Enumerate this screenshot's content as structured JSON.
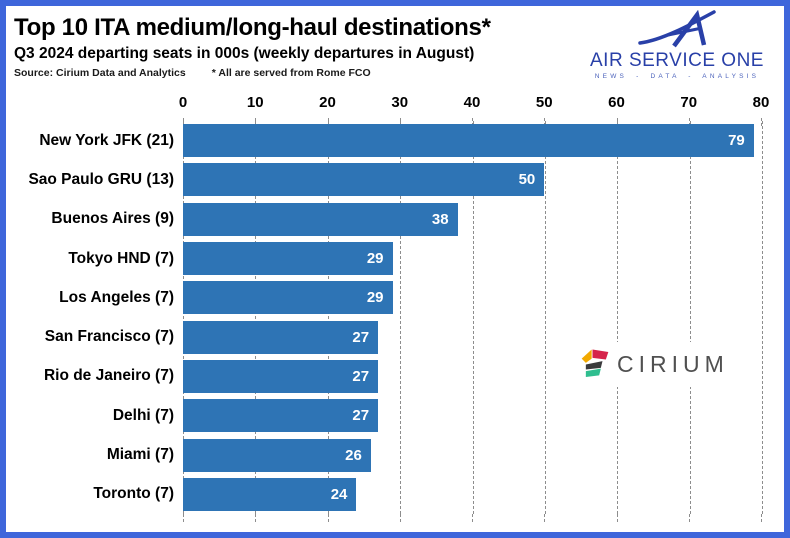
{
  "header": {
    "title": "Top 10 ITA medium/long-haul destinations*",
    "subtitle": "Q3 2024 departing seats in 000s (weekly departures in August)",
    "source": "Source: Cirium Data and Analytics",
    "footnote": "* All are served from Rome FCO"
  },
  "brand": {
    "name": "AIR SERVICE ONE",
    "tagline": "NEWS - DATA - ANALYSIS",
    "color": "#2940A8"
  },
  "watermark": {
    "text": "CIRIUM",
    "text_color": "#505050",
    "icon_colors": {
      "yellow": "#F2A900",
      "red": "#D6244B",
      "dark": "#3A3A3C",
      "green": "#2FBE8F"
    }
  },
  "frame": {
    "border_color": "#3E66DB"
  },
  "chart_data": {
    "type": "bar",
    "orientation": "horizontal",
    "title": "Top 10 ITA medium/long-haul destinations*",
    "subtitle": "Q3 2024 departing seats in 000s (weekly departures in August)",
    "categories": [
      "New York JFK (21)",
      "Sao Paulo GRU (13)",
      "Buenos Aires (9)",
      "Tokyo HND (7)",
      "Los Angeles (7)",
      "San Francisco (7)",
      "Rio de Janeiro (7)",
      "Delhi (7)",
      "Miami (7)",
      "Toronto (7)"
    ],
    "values": [
      79,
      50,
      38,
      29,
      29,
      27,
      27,
      27,
      26,
      24
    ],
    "xlim": [
      0,
      80
    ],
    "xticks": [
      0,
      10,
      20,
      30,
      40,
      50,
      60,
      70,
      80
    ],
    "bar_color": "#2E74B5",
    "value_label_color": "#FFFFFF",
    "gridline_style": "dashed",
    "gridline_color": "#8D8D8D",
    "legend": "none",
    "value_labels_inside_bars": true
  }
}
